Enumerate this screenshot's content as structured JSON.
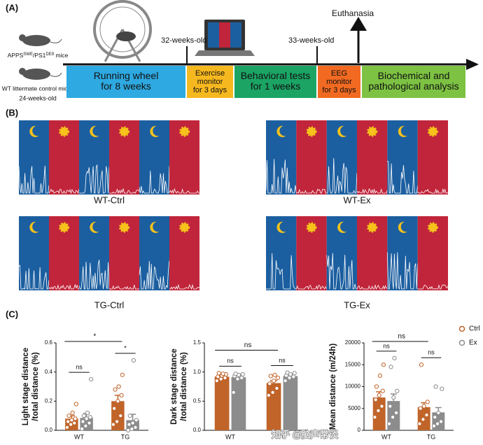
{
  "panel_labels": [
    "(A)",
    "(B)",
    "(C)"
  ],
  "timeline": {
    "mouse_labels": [
      [
        "APPS",
        "SWE",
        "/PS1",
        "DE9",
        " mice"
      ],
      [
        "WT littermate control mice"
      ]
    ],
    "start_age": "24-weeks-old",
    "ages": [
      "32-weeks-old",
      "33-weeks-old"
    ],
    "endpoint": "Euthanasia",
    "stages": [
      {
        "lines": [
          "Running wheel",
          "for 8 weeks"
        ],
        "color": "#2ea9e1"
      },
      {
        "lines": [
          "Exercise",
          "monitor",
          "for 3 days"
        ],
        "color": "#f6b81f"
      },
      {
        "lines": [
          "Behavioral tests",
          "for 1 weeks"
        ],
        "color": "#1ba464"
      },
      {
        "lines": [
          "EEG",
          "monitor",
          "for 3 days"
        ],
        "color": "#f26a21"
      },
      {
        "lines": [
          "Biochemical and",
          "pathological analysis"
        ],
        "color": "#7dc243"
      }
    ]
  },
  "actograms": {
    "labels": [
      "WT-Ctrl",
      "WT-Ex",
      "TG-Ctrl",
      "TG-Ex"
    ],
    "dark_color": "#1c5fa0",
    "light_color": "#c1253b"
  },
  "watermark": "知乎 @脑声常谈",
  "chart_data": [
    {
      "type": "bar",
      "ylabel": [
        "Light stage distance",
        "/total distance (%)"
      ],
      "categories": [
        "WT",
        "TG"
      ],
      "ylim": [
        0,
        0.6
      ],
      "yticks": [
        {
          "value": 0,
          "label": "0.0"
        },
        0.2,
        0.4,
        0.6
      ],
      "series": [
        {
          "name": "Ctrl",
          "color": "#c0642a",
          "values": [
            0.08,
            0.2
          ],
          "errors": [
            0.02,
            0.04
          ],
          "points": [
            [
              0.02,
              0.04,
              0.05,
              0.06,
              0.07,
              0.08,
              0.1,
              0.12,
              0.18
            ],
            [
              0.04,
              0.06,
              0.1,
              0.15,
              0.2,
              0.24,
              0.28,
              0.3,
              0.38
            ]
          ]
        },
        {
          "name": "Ex",
          "color": "#8c8c8c",
          "values": [
            0.085,
            0.07
          ],
          "errors": [
            0.03,
            0.04
          ],
          "points": [
            [
              0.01,
              0.03,
              0.05,
              0.06,
              0.08,
              0.09,
              0.1,
              0.12,
              0.35
            ],
            [
              0,
              0.01,
              0.02,
              0.04,
              0.05,
              0.07,
              0.1,
              0.48
            ]
          ]
        }
      ],
      "within_category_tests": [
        {
          "category": "WT",
          "label": "ns"
        },
        {
          "category": "TG",
          "label": "*"
        }
      ],
      "between_category_tests": [
        "*"
      ]
    },
    {
      "type": "bar",
      "ylabel": [
        "Dark stage distance",
        "/total distance (%)"
      ],
      "categories": [
        "WT",
        "TG"
      ],
      "ylim": [
        0,
        1.5
      ],
      "yticks": [
        {
          "value": 0,
          "label": "0.0"
        },
        0.5,
        {
          "value": 1,
          "label": "1.0"
        },
        1.5
      ],
      "series": [
        {
          "name": "Ctrl",
          "color": "#c0642a",
          "values": [
            0.92,
            0.81
          ],
          "errors": [
            0.02,
            0.04
          ],
          "points": [
            [
              0.85,
              0.88,
              0.9,
              0.92,
              0.94,
              0.96,
              0.98,
              0.97
            ],
            [
              0.6,
              0.65,
              0.72,
              0.8,
              0.85,
              0.9,
              0.93,
              0.95
            ]
          ]
        },
        {
          "name": "Ex",
          "color": "#8c8c8c",
          "values": [
            0.91,
            0.93
          ],
          "errors": [
            0.03,
            0.03
          ],
          "points": [
            [
              0.65,
              0.88,
              0.9,
              0.93,
              0.95,
              0.96,
              0.97
            ],
            [
              0.85,
              0.9,
              0.92,
              0.94,
              0.96,
              0.98,
              0.99
            ]
          ]
        }
      ],
      "within_category_tests": [
        {
          "category": "WT",
          "label": "ns"
        },
        {
          "category": "TG",
          "label": "ns"
        }
      ],
      "between_category_tests": [
        "ns"
      ]
    },
    {
      "type": "bar",
      "ylabel": [
        "Mean distance (m/24h)"
      ],
      "categories": [
        "WT",
        "TG"
      ],
      "ylim": [
        0,
        20000
      ],
      "yticks": [
        0,
        5000,
        10000,
        15000,
        20000
      ],
      "legend": true,
      "series": [
        {
          "name": "Ctrl",
          "color": "#c0642a",
          "values": [
            7500,
            5300
          ],
          "errors": [
            1300,
            1000
          ],
          "points": [
            [
              3000,
              4500,
              5500,
              7000,
              8000,
              9000,
              10000,
              12500,
              15000
            ],
            [
              1500,
              2500,
              3500,
              5000,
              5500,
              6500,
              15000
            ]
          ]
        },
        {
          "name": "Ex",
          "color": "#8c8c8c",
          "values": [
            6700,
            4100
          ],
          "errors": [
            1600,
            1100
          ],
          "points": [
            [
              1500,
              3000,
              4000,
              5500,
              7500,
              9000,
              14500,
              16500
            ],
            [
              1000,
              1500,
              2000,
              3000,
              4000,
              9500,
              10000
            ]
          ]
        }
      ],
      "within_category_tests": [
        {
          "category": "WT",
          "label": "ns"
        },
        {
          "category": "TG",
          "label": "ns"
        }
      ],
      "between_category_tests": [
        "ns"
      ]
    }
  ]
}
